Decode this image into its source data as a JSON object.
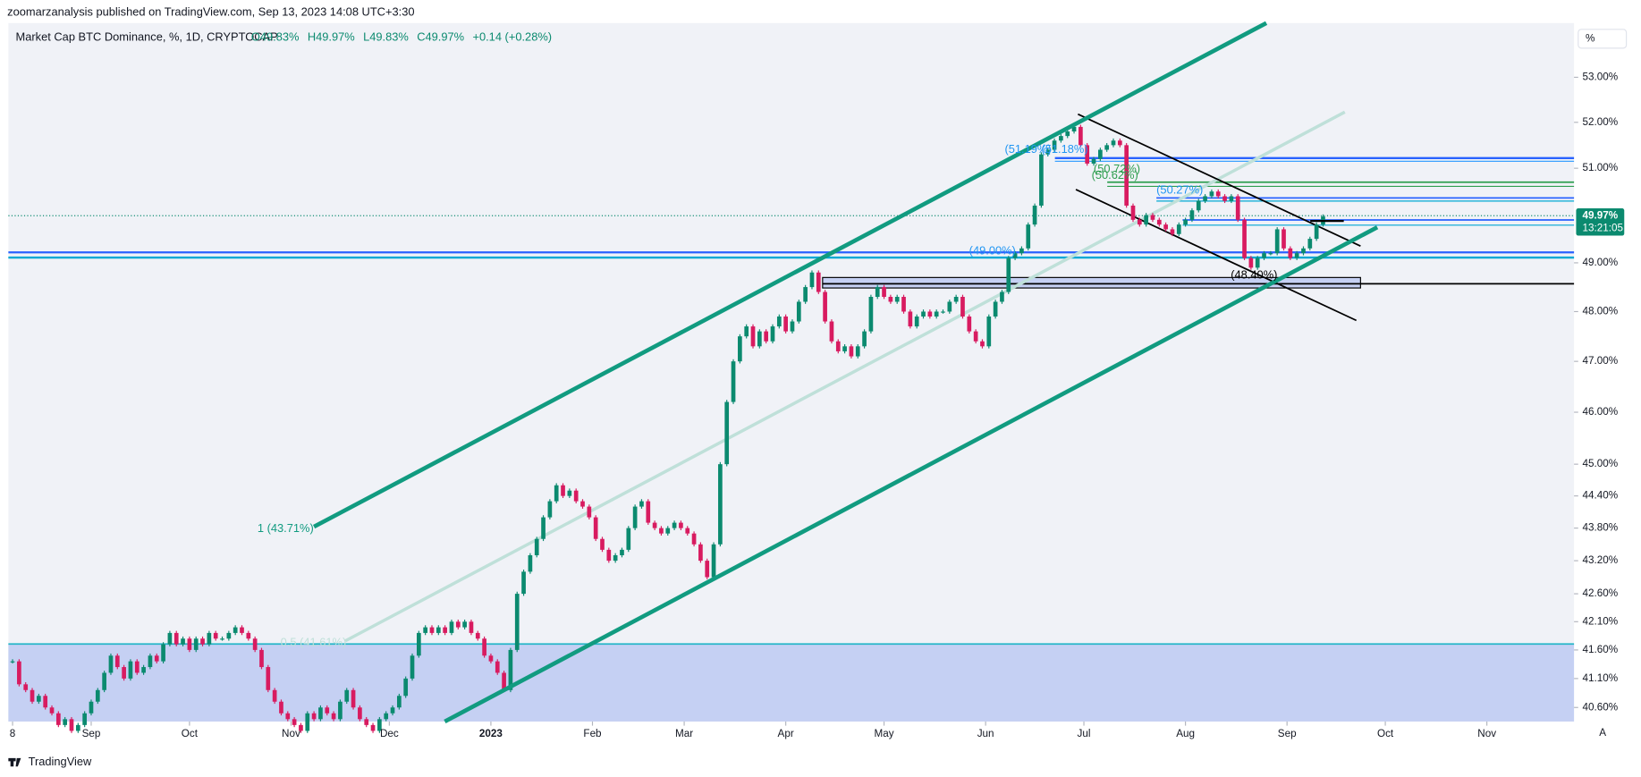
{
  "header": {
    "publisher": "zoomarzanalysis published on TradingView.com, Sep 13, 2023 14:08 UTC+3:30",
    "brand": "TradingView"
  },
  "chart_data": {
    "type": "candlestick",
    "title": "Market Cap BTC Dominance, %, 1D, CRYPTOCAP",
    "ohlc": [
      "O49.83%",
      "H49.97%",
      "L49.83%",
      "C49.97%",
      "+0.14 (+0.28%)"
    ],
    "last_price_label": "49.97%",
    "countdown": "13:21:05",
    "scale_button": "%",
    "auto_button": "A",
    "up_color": "#0b8a6f",
    "down_color": "#d81b60",
    "log": true,
    "values": [
      41.4,
      41.0,
      40.9,
      40.7,
      40.8,
      40.6,
      40.5,
      40.3,
      40.4,
      40.2,
      40.3,
      40.5,
      40.7,
      40.9,
      41.2,
      41.5,
      41.3,
      41.1,
      41.4,
      41.2,
      41.3,
      41.5,
      41.4,
      41.7,
      41.9,
      41.7,
      41.8,
      41.6,
      41.8,
      41.7,
      41.9,
      41.8,
      41.8,
      41.9,
      42.0,
      41.9,
      41.8,
      41.6,
      41.3,
      40.9,
      40.7,
      40.5,
      40.4,
      40.3,
      40.2,
      40.5,
      40.4,
      40.6,
      40.5,
      40.4,
      40.7,
      40.9,
      40.6,
      40.4,
      40.3,
      40.2,
      40.4,
      40.5,
      40.6,
      40.8,
      41.1,
      41.5,
      41.9,
      42.0,
      41.9,
      42.0,
      41.9,
      42.1,
      42.0,
      42.1,
      41.9,
      41.8,
      41.5,
      41.4,
      41.2,
      40.9,
      41.6,
      42.6,
      43.0,
      43.3,
      43.6,
      44.0,
      44.3,
      44.6,
      44.4,
      44.5,
      44.3,
      44.2,
      44.0,
      43.6,
      43.4,
      43.2,
      43.3,
      43.4,
      43.8,
      44.2,
      44.3,
      43.9,
      43.8,
      43.7,
      43.8,
      43.9,
      43.8,
      43.7,
      43.5,
      43.2,
      42.9,
      43.5,
      45.0,
      46.2,
      47.0,
      47.5,
      47.7,
      47.3,
      47.6,
      47.4,
      47.7,
      47.9,
      47.6,
      47.8,
      48.2,
      48.5,
      48.8,
      48.4,
      47.8,
      47.4,
      47.2,
      47.3,
      47.1,
      47.3,
      47.6,
      48.3,
      48.5,
      48.3,
      48.2,
      48.3,
      48.0,
      47.7,
      47.9,
      48.0,
      47.9,
      48.0,
      48.0,
      48.2,
      48.3,
      47.9,
      47.6,
      47.4,
      47.3,
      47.9,
      48.2,
      48.4,
      49.1,
      49.2,
      49.3,
      49.8,
      50.2,
      51.3,
      51.4,
      51.6,
      51.7,
      51.8,
      51.9,
      51.5,
      51.1,
      51.2,
      51.4,
      51.5,
      51.6,
      51.5,
      50.2,
      49.9,
      49.8,
      50.0,
      49.9,
      49.8,
      49.7,
      49.6,
      49.8,
      49.9,
      50.1,
      50.3,
      50.4,
      50.5,
      50.4,
      50.3,
      50.4,
      49.9,
      49.1,
      48.9,
      49.1,
      49.2,
      49.2,
      49.7,
      49.3,
      49.1,
      49.2,
      49.3,
      49.5,
      49.8,
      49.97
    ],
    "xlim": [
      -0.64,
      238.3
    ],
    "xticks": [
      {
        "value": 0,
        "label": "8"
      },
      {
        "value": 12,
        "label": "Sep"
      },
      {
        "value": 27,
        "label": "Oct"
      },
      {
        "value": 42.5,
        "label": "Nov"
      },
      {
        "value": 57.5,
        "label": "Dec"
      },
      {
        "value": 73,
        "label": "2023"
      },
      {
        "value": 88.5,
        "label": "Feb"
      },
      {
        "value": 102.5,
        "label": "Mar"
      },
      {
        "value": 118,
        "label": "Apr"
      },
      {
        "value": 133,
        "label": "May"
      },
      {
        "value": 148.5,
        "label": "Jun"
      },
      {
        "value": 163.5,
        "label": "Jul"
      },
      {
        "value": 179,
        "label": "Aug"
      },
      {
        "value": 194.5,
        "label": "Sep"
      },
      {
        "value": 209.5,
        "label": "Oct"
      },
      {
        "value": 225,
        "label": "Nov"
      }
    ],
    "ylim": [
      40.36,
      54.23
    ],
    "yticks": [
      {
        "value": 53,
        "label": "53.00%"
      },
      {
        "value": 52,
        "label": "52.00%"
      },
      {
        "value": 51,
        "label": "51.00%"
      },
      {
        "value": 49,
        "label": "49.00%"
      },
      {
        "value": 48,
        "label": "48.00%"
      },
      {
        "value": 47,
        "label": "47.00%"
      },
      {
        "value": 46,
        "label": "46.00%"
      },
      {
        "value": 45,
        "label": "45.00%"
      },
      {
        "value": 44.4,
        "label": "44.40%"
      },
      {
        "value": 43.8,
        "label": "43.80%"
      },
      {
        "value": 43.2,
        "label": "43.20%"
      },
      {
        "value": 42.6,
        "label": "42.60%"
      },
      {
        "value": 42.1,
        "label": "42.10%"
      },
      {
        "value": 41.6,
        "label": "41.60%"
      },
      {
        "value": 41.1,
        "label": "41.10%"
      },
      {
        "value": 40.6,
        "label": "40.60%"
      }
    ],
    "annotations": [
      "(51.19%)",
      "(51.18%)",
      "(50.72%)",
      "(50.62%)",
      "(50.27%)",
      "(49.00%)",
      "(48.40%)",
      "1 (43.71%)",
      "0.5 (41.61%)"
    ]
  }
}
